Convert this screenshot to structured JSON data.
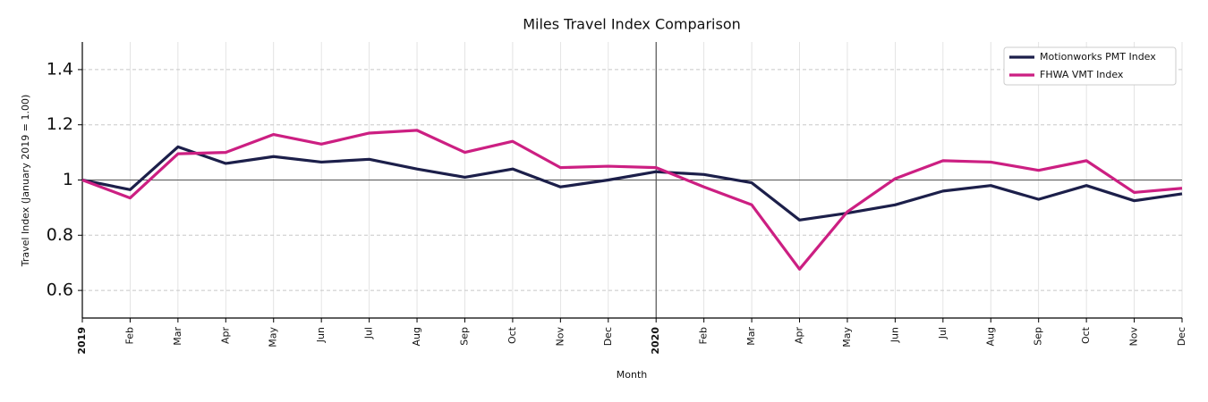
{
  "chart_data": {
    "type": "line",
    "title": "Miles Travel Index Comparison",
    "xlabel": "Month",
    "ylabel": "Travel Index (January 2019 = 1.00)",
    "categories": [
      "2019",
      "Feb",
      "Mar",
      "Apr",
      "May",
      "Jun",
      "Jul",
      "Aug",
      "Sep",
      "Oct",
      "Nov",
      "Dec",
      "2020",
      "Feb",
      "Mar",
      "Apr",
      "May",
      "Jun",
      "Jul",
      "Aug",
      "Sep",
      "Oct",
      "Nov",
      "Dec"
    ],
    "series": [
      {
        "name": "Motionworks PMT Index",
        "color": "#1c1f4a",
        "values": [
          1.0,
          0.965,
          1.12,
          1.06,
          1.085,
          1.065,
          1.075,
          1.04,
          1.01,
          1.04,
          0.975,
          1.0,
          1.03,
          1.02,
          0.99,
          0.855,
          0.88,
          0.91,
          0.96,
          0.98,
          0.93,
          0.98,
          0.925,
          0.95
        ]
      },
      {
        "name": "FHWA VMT Index",
        "color": "#cc1f82",
        "values": [
          1.0,
          0.935,
          1.095,
          1.1,
          1.165,
          1.13,
          1.17,
          1.18,
          1.1,
          1.14,
          1.045,
          1.05,
          1.045,
          0.975,
          0.91,
          0.677,
          0.885,
          1.005,
          1.07,
          1.065,
          1.035,
          1.07,
          0.955,
          0.97
        ]
      }
    ],
    "ylim": [
      0.5,
      1.5
    ],
    "yticks": [
      0.6,
      0.8,
      1.0,
      1.2,
      1.4
    ],
    "hline": 1.0,
    "grid": true,
    "legend": "upper right"
  }
}
